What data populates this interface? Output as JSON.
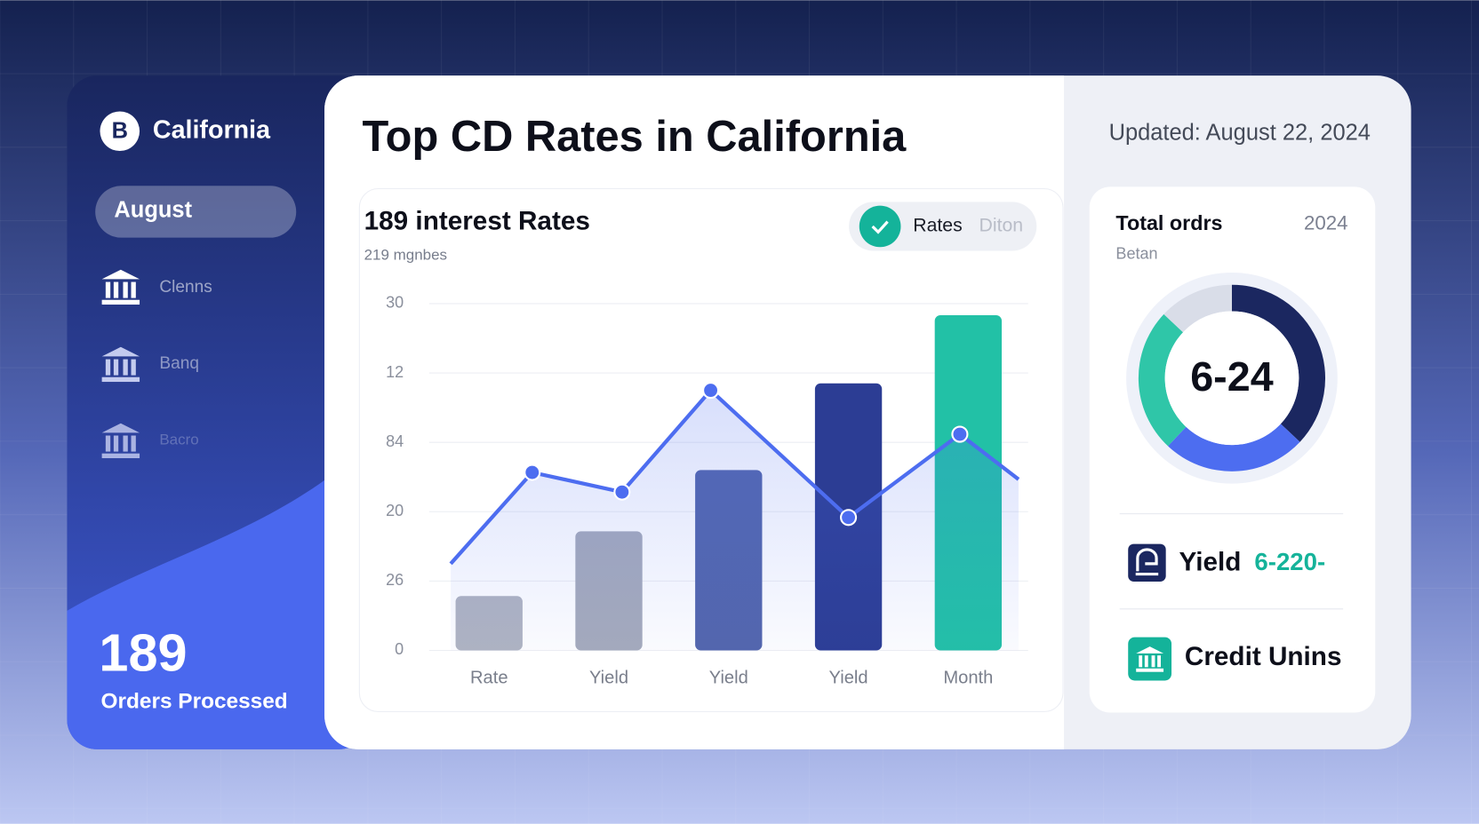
{
  "sidebar": {
    "brand_initial": "B",
    "brand": "California",
    "active": "August",
    "items": [
      "Clenns",
      "Banq",
      "Bacro"
    ],
    "stat_value": "189",
    "stat_label": "Orders Processed"
  },
  "header": {
    "title": "Top CD Rates in California",
    "updated": "Updated: August 22, 2024"
  },
  "chart_data": [
    {
      "type": "bar",
      "title": "189 interest Rates",
      "subtitle": "219 mgnbes",
      "categories": [
        "Rate",
        "Yield",
        "Yield",
        "Yield",
        "Month"
      ],
      "series": [
        {
          "name": "Rates",
          "type": "bar",
          "colors": [
            "#b0b4c1",
            "#a6abbb",
            "#5366ac",
            "#2c3d94",
            "#22c1a6"
          ],
          "values": [
            4.7,
            10.3,
            15.6,
            23.1,
            29.0
          ]
        },
        {
          "name": "Diton",
          "type": "line",
          "color": "#4d6df0",
          "x": [
            -0.32,
            0.36,
            1.11,
            1.85,
            3.0,
            3.93,
            4.42
          ],
          "values": [
            7.5,
            15.4,
            13.7,
            22.5,
            11.5,
            18.7,
            14.8
          ]
        }
      ],
      "ylim": [
        0,
        30
      ],
      "yticks": [
        0,
        {
          "value": 6,
          "label": "26"
        },
        {
          "value": 12,
          "label": "20"
        },
        {
          "value": 18,
          "label": "84"
        },
        {
          "value": 24,
          "label": "12"
        },
        30
      ],
      "grid": true
    },
    {
      "type": "donut",
      "title": "Total ordrs",
      "year": "2024",
      "subtitle": "Betan",
      "center_label": "6-24",
      "values": [
        37,
        25,
        25,
        13
      ],
      "colors": [
        "#1b2760",
        "#4d6df0",
        "#2fc6a8",
        "#d9dde8"
      ]
    }
  ],
  "summary": [
    {
      "label": "Yield",
      "value": "6-220-"
    },
    {
      "label": "Credit Unins"
    }
  ]
}
